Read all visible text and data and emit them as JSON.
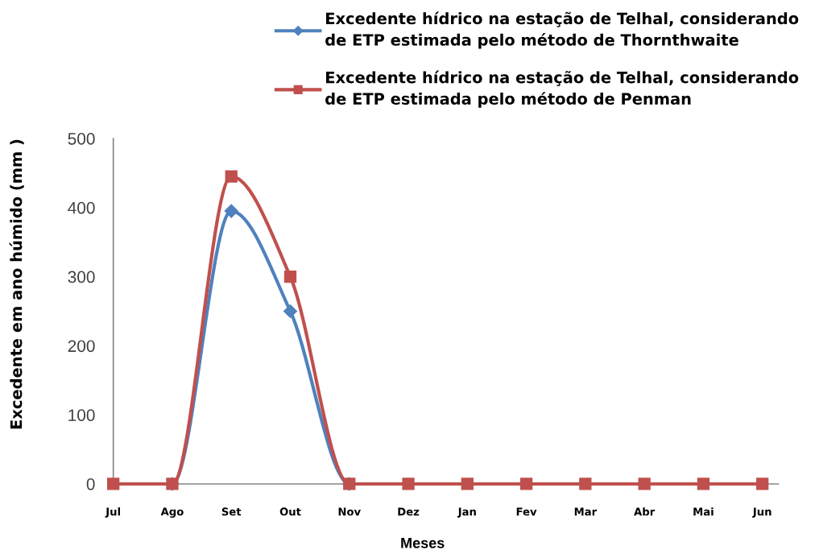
{
  "chart_data": {
    "type": "line",
    "xlabel": "Meses",
    "ylabel": "Excedente em ano húmido (mm )",
    "categories": [
      "Jul",
      "Ago",
      "Set",
      "Out",
      "Nov",
      "Dez",
      "Jan",
      "Fev",
      "Mar",
      "Abr",
      "Mai",
      "Jun"
    ],
    "series": [
      {
        "name": "Excedente hídrico na estação de Telhal, considerando\nde ETP estimada pelo método de Thornthwaite",
        "color": "#4f81bd",
        "marker": "diamond",
        "values": [
          null,
          0,
          395,
          250,
          0,
          null,
          null,
          null,
          null,
          null,
          null,
          null
        ]
      },
      {
        "name": "Excedente hídrico na estação de Telhal, considerando\nde ETP estimada pelo método de Penman",
        "color": "#c0504d",
        "marker": "square",
        "values": [
          0,
          0,
          445,
          300,
          0,
          0,
          0,
          0,
          0,
          0,
          0,
          0
        ]
      }
    ],
    "ylim": [
      0,
      500
    ],
    "yticks": [
      0,
      100,
      200,
      300,
      400,
      500
    ],
    "grid": false,
    "legend": "top right",
    "line_style": "solid"
  }
}
